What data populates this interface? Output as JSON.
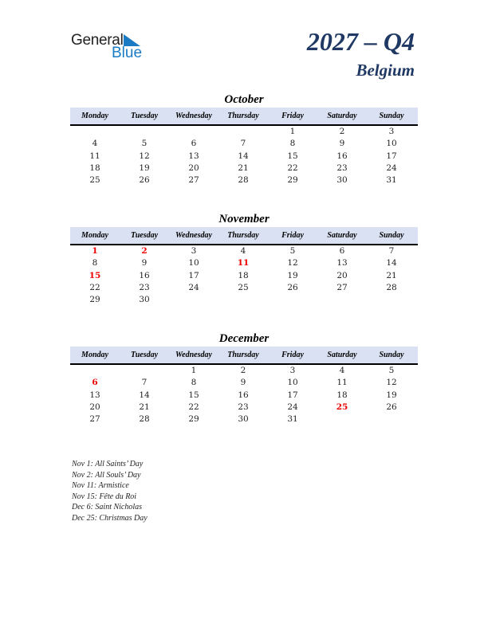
{
  "logo": {
    "text1": "General",
    "text2": "Blue"
  },
  "title": "2027 – Q4",
  "country": "Belgium",
  "weekdays": [
    "Monday",
    "Tuesday",
    "Wednesday",
    "Thursday",
    "Friday",
    "Saturday",
    "Sunday"
  ],
  "colors": {
    "accent": "#1f3864",
    "header_bg": "#d9e1f2",
    "holiday": "#ee0000",
    "logo_blue": "#1a7ac4"
  },
  "months": [
    {
      "name": "October",
      "weeks": [
        [
          "",
          "",
          "",
          "",
          "1",
          "2",
          "3"
        ],
        [
          "4",
          "5",
          "6",
          "7",
          "8",
          "9",
          "10"
        ],
        [
          "11",
          "12",
          "13",
          "14",
          "15",
          "16",
          "17"
        ],
        [
          "18",
          "19",
          "20",
          "21",
          "22",
          "23",
          "24"
        ],
        [
          "25",
          "26",
          "27",
          "28",
          "29",
          "30",
          "31"
        ]
      ],
      "holidays": []
    },
    {
      "name": "November",
      "weeks": [
        [
          "1",
          "2",
          "3",
          "4",
          "5",
          "6",
          "7"
        ],
        [
          "8",
          "9",
          "10",
          "11",
          "12",
          "13",
          "14"
        ],
        [
          "15",
          "16",
          "17",
          "18",
          "19",
          "20",
          "21"
        ],
        [
          "22",
          "23",
          "24",
          "25",
          "26",
          "27",
          "28"
        ],
        [
          "29",
          "30",
          "",
          "",
          "",
          "",
          ""
        ]
      ],
      "holidays": [
        "1",
        "2",
        "11",
        "15"
      ]
    },
    {
      "name": "December",
      "weeks": [
        [
          "",
          "",
          "1",
          "2",
          "3",
          "4",
          "5"
        ],
        [
          "6",
          "7",
          "8",
          "9",
          "10",
          "11",
          "12"
        ],
        [
          "13",
          "14",
          "15",
          "16",
          "17",
          "18",
          "19"
        ],
        [
          "20",
          "21",
          "22",
          "23",
          "24",
          "25",
          "26"
        ],
        [
          "27",
          "28",
          "29",
          "30",
          "31",
          "",
          ""
        ]
      ],
      "holidays": [
        "6",
        "25"
      ]
    }
  ],
  "notes": [
    "Nov 1: All Saints’ Day",
    "Nov 2: All Souls’ Day",
    "Nov 11: Armistice",
    "Nov 15: Fête du Roi",
    "Dec 6: Saint Nicholas",
    "Dec 25: Christmas Day"
  ]
}
